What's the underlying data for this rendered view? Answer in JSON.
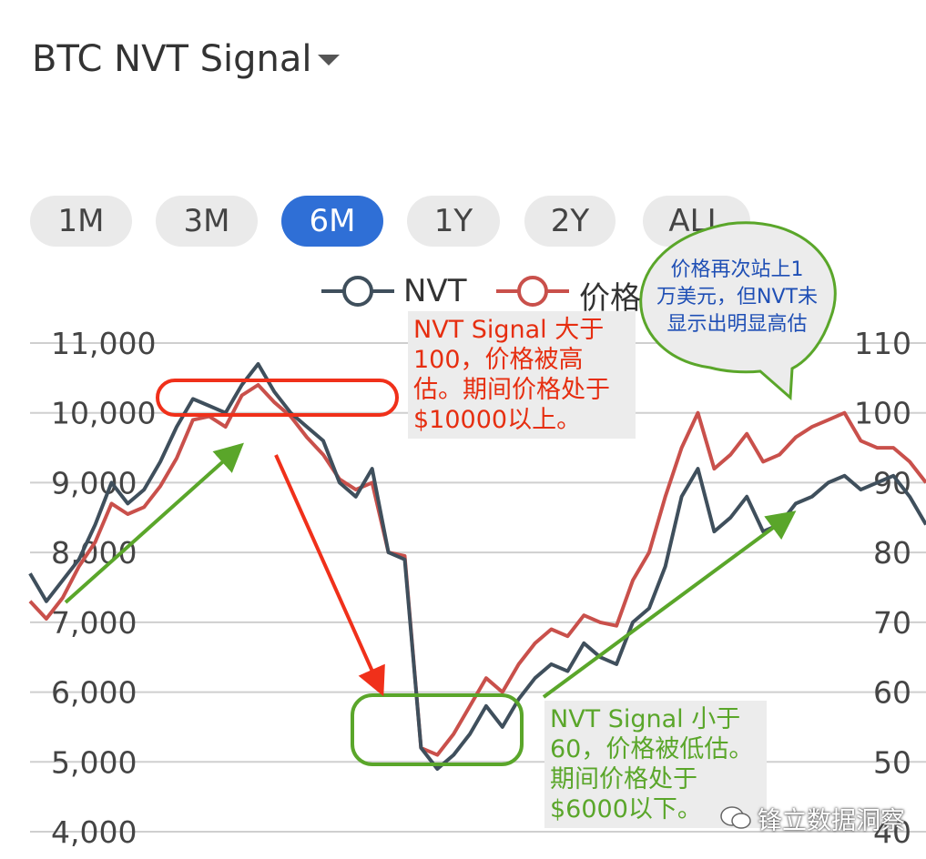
{
  "header": {
    "title": "BTC NVT Signal"
  },
  "ranges": [
    {
      "label": "1M",
      "active": false
    },
    {
      "label": "3M",
      "active": false
    },
    {
      "label": "6M",
      "active": true
    },
    {
      "label": "1Y",
      "active": false
    },
    {
      "label": "2Y",
      "active": false
    },
    {
      "label": "ALL",
      "active": false
    }
  ],
  "legend": {
    "nvt": "NVT",
    "price": "价格"
  },
  "colors": {
    "nvt": "#3f4f5c",
    "price": "#c9504b",
    "arrow_green": "#5aa62a",
    "arrow_red": "#f0301a",
    "active_range": "#2f6fd6"
  },
  "annotations": {
    "high": [
      "NVT Signal 大于",
      "100，价格被高",
      "估。期间价格处于",
      "$10000以上。"
    ],
    "low": [
      "NVT Signal 小于",
      "60，价格被低估。",
      "期间价格处于",
      "$6000以下。"
    ],
    "bubble": [
      "价格再次站上1",
      "万美元，但NVT未",
      "显示出明显高估"
    ]
  },
  "watermark": "锋立数据洞察",
  "chart_data": {
    "type": "line",
    "left_axis": {
      "ticks": [
        "11,000",
        "10,000",
        "9,000",
        "8,000",
        "7,000",
        "6,000",
        "5,000",
        "4,000"
      ],
      "ylim": [
        4000,
        11000
      ]
    },
    "right_axis": {
      "ticks": [
        "110",
        "100",
        "90",
        "80",
        "70",
        "60",
        "50",
        "40"
      ],
      "ylim": [
        40,
        110
      ]
    },
    "series": [
      {
        "name": "NVT",
        "axis": "right",
        "values": [
          77,
          73,
          76,
          79,
          84,
          90,
          87,
          89,
          93,
          98,
          102,
          101,
          100,
          104,
          107,
          103,
          100,
          98,
          96,
          90,
          88,
          92,
          80,
          79,
          52,
          49,
          51,
          54,
          58,
          55,
          59,
          62,
          64,
          63,
          67,
          65,
          64,
          70,
          72,
          78,
          88,
          92,
          83,
          85,
          88,
          83,
          84,
          87,
          88,
          90,
          91,
          89,
          90,
          91,
          88,
          84
        ]
      },
      {
        "name": "价格",
        "axis": "left",
        "values": [
          7300,
          7050,
          7350,
          7800,
          8150,
          8700,
          8550,
          8650,
          8950,
          9350,
          9900,
          9950,
          9800,
          10250,
          10400,
          10150,
          9950,
          9650,
          9400,
          9050,
          8900,
          9000,
          8000,
          7950,
          5200,
          5100,
          5400,
          5800,
          6200,
          6000,
          6400,
          6700,
          6900,
          6800,
          7100,
          7000,
          6950,
          7600,
          8000,
          8800,
          9500,
          10000,
          9200,
          9400,
          9700,
          9300,
          9400,
          9650,
          9800,
          9900,
          10000,
          9600,
          9500,
          9500,
          9300,
          9000
        ]
      }
    ]
  }
}
